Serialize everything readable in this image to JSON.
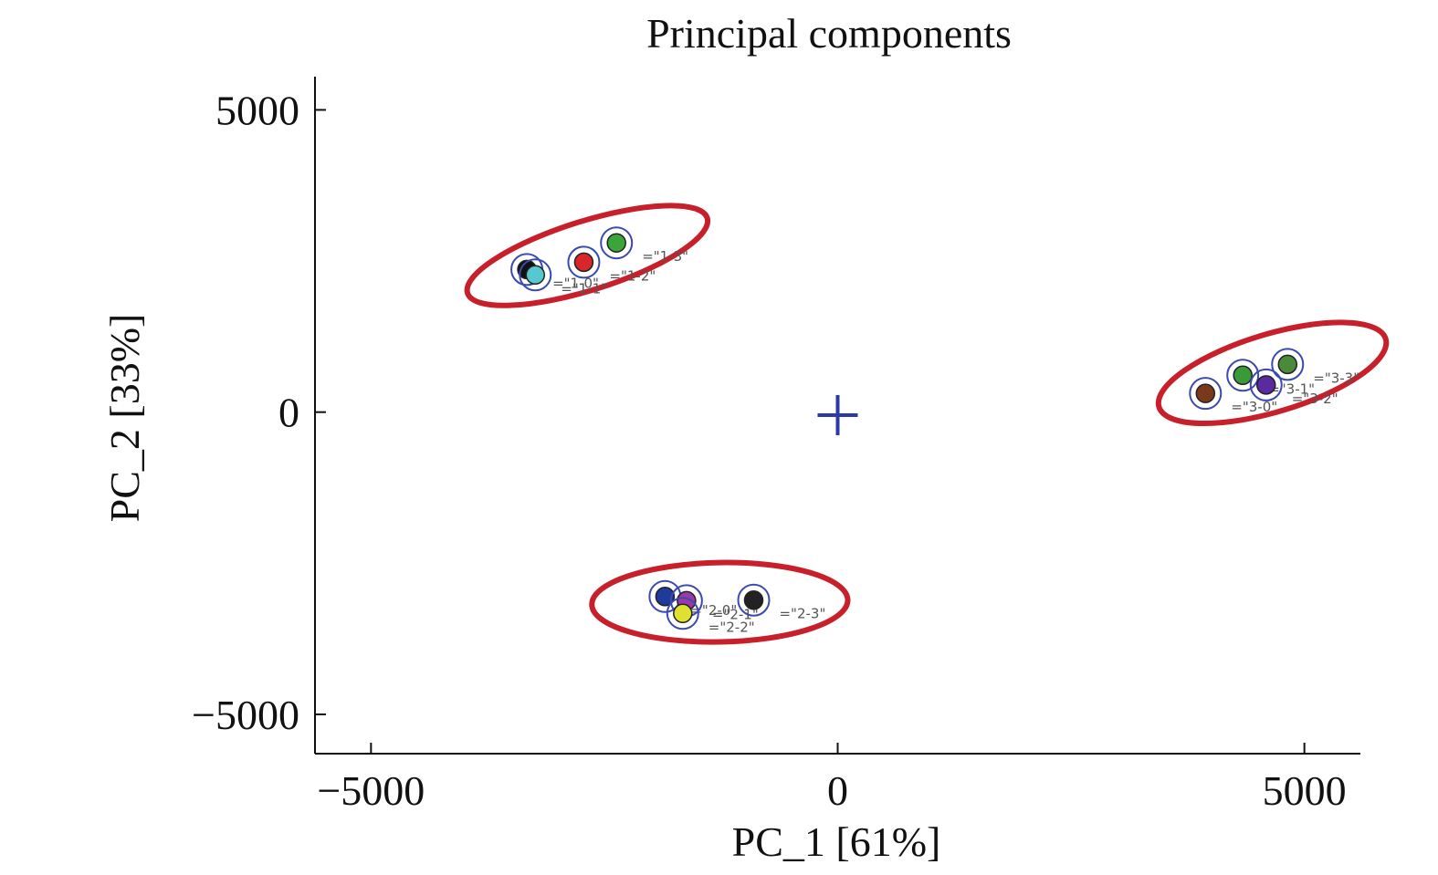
{
  "chart_data": {
    "type": "scatter",
    "title": "Principal components",
    "xlabel": "PC_1 [61%]",
    "ylabel": "PC_2 [33%]",
    "xlim": [
      -5600,
      5600
    ],
    "ylim": [
      -5650,
      5550
    ],
    "xticks": [
      -5000,
      0,
      5000
    ],
    "yticks": [
      5000,
      0,
      -5000
    ],
    "xtick_labels": [
      "−5000",
      "0",
      "5000"
    ],
    "ytick_labels": [
      "5000",
      "0",
      "−5000"
    ],
    "grid": false,
    "legend": "none",
    "centroid": {
      "x": 0,
      "y": -50,
      "color": "#2b3aa8"
    },
    "clusters": [
      {
        "group": "1",
        "ellipse_color": "#c8202a",
        "points": [
          {
            "label": "=\"1-0\"",
            "x": -3330,
            "y": 2360,
            "color": "#111111"
          },
          {
            "label": "=\"1-1\"",
            "x": -3240,
            "y": 2270,
            "color": "#55c8d0"
          },
          {
            "label": "=\"1-2\"",
            "x": -2720,
            "y": 2480,
            "color": "#d8262b"
          },
          {
            "label": "=\"1-3\"",
            "x": -2370,
            "y": 2800,
            "color": "#3aa63a"
          }
        ]
      },
      {
        "group": "2",
        "ellipse_color": "#c8202a",
        "points": [
          {
            "label": "=\"2-0\"",
            "x": -1850,
            "y": -3050,
            "color": "#1e3a9a"
          },
          {
            "label": "=\"2-1\"",
            "x": -1620,
            "y": -3120,
            "color": "#9a3aa8"
          },
          {
            "label": "=\"2-2\"",
            "x": -1660,
            "y": -3330,
            "color": "#e0e030"
          },
          {
            "label": "=\"2-3\"",
            "x": -900,
            "y": -3110,
            "color": "#222222"
          }
        ]
      },
      {
        "group": "3",
        "ellipse_color": "#c8202a",
        "points": [
          {
            "label": "=\"3-0\"",
            "x": 3940,
            "y": 310,
            "color": "#7a3a1a"
          },
          {
            "label": "=\"3-1\"",
            "x": 4340,
            "y": 610,
            "color": "#3a9a3a"
          },
          {
            "label": "=\"3-2\"",
            "x": 4590,
            "y": 450,
            "color": "#5a2aa0"
          },
          {
            "label": "=\"3-3\"",
            "x": 4820,
            "y": 790,
            "color": "#4a8a3a"
          }
        ]
      }
    ]
  }
}
